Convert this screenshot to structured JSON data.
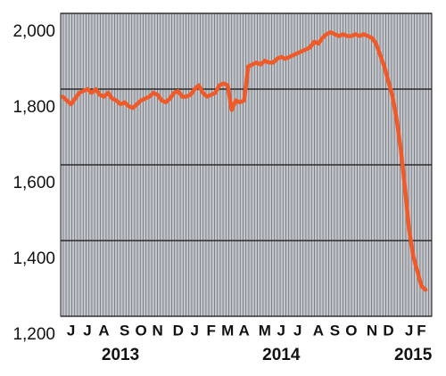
{
  "chart_data": {
    "type": "line",
    "categories": [
      null,
      null,
      "J",
      null,
      null,
      null,
      "J",
      null,
      null,
      null,
      "A",
      null,
      null,
      null,
      null,
      "S",
      null,
      null,
      null,
      "O",
      null,
      null,
      null,
      "N",
      null,
      null,
      null,
      null,
      "D",
      null,
      null,
      null,
      "J",
      null,
      null,
      null,
      "F",
      null,
      null,
      null,
      "M",
      null,
      null,
      null,
      "A",
      null,
      null,
      null,
      null,
      "M",
      null,
      null,
      null,
      "J",
      null,
      null,
      null,
      "J",
      null,
      null,
      null,
      null,
      "A",
      null,
      null,
      null,
      "S",
      null,
      null,
      null,
      "O",
      null,
      null,
      null,
      null,
      "N",
      null,
      null,
      null,
      "D",
      null,
      null,
      null,
      null,
      "J",
      null,
      null,
      "F",
      null
    ],
    "years": [
      "2013",
      "2014",
      "2015"
    ],
    "series": [
      {
        "color": "#f05a28",
        "values": [
          1780,
          1770,
          1760,
          1775,
          1790,
          1795,
          1800,
          1790,
          1800,
          1785,
          1780,
          1790,
          1775,
          1770,
          1760,
          1765,
          1755,
          1750,
          1760,
          1770,
          1775,
          1780,
          1790,
          1785,
          1770,
          1765,
          1775,
          1790,
          1795,
          1780,
          1780,
          1785,
          1800,
          1810,
          1790,
          1780,
          1785,
          1790,
          1810,
          1815,
          1810,
          1745,
          1770,
          1765,
          1770,
          1860,
          1865,
          1870,
          1865,
          1875,
          1870,
          1870,
          1880,
          1885,
          1880,
          1885,
          1890,
          1895,
          1900,
          1905,
          1910,
          1925,
          1920,
          1935,
          1945,
          1950,
          1945,
          1940,
          1945,
          1940,
          1940,
          1945,
          1940,
          1945,
          1940,
          1935,
          1920,
          1890,
          1860,
          1820,
          1780,
          1720,
          1640,
          1540,
          1430,
          1360,
          1320,
          1280,
          1270
        ]
      }
    ],
    "ylim": [
      1200,
      2000
    ],
    "yticks": [
      {
        "value": 1200,
        "label": "1,200"
      },
      {
        "value": 1400,
        "label": "1,400"
      },
      {
        "value": 1600,
        "label": "1,600"
      },
      {
        "value": 1800,
        "label": "1,800"
      },
      {
        "value": 2000,
        "label": "2,000"
      }
    ],
    "grid": true
  }
}
